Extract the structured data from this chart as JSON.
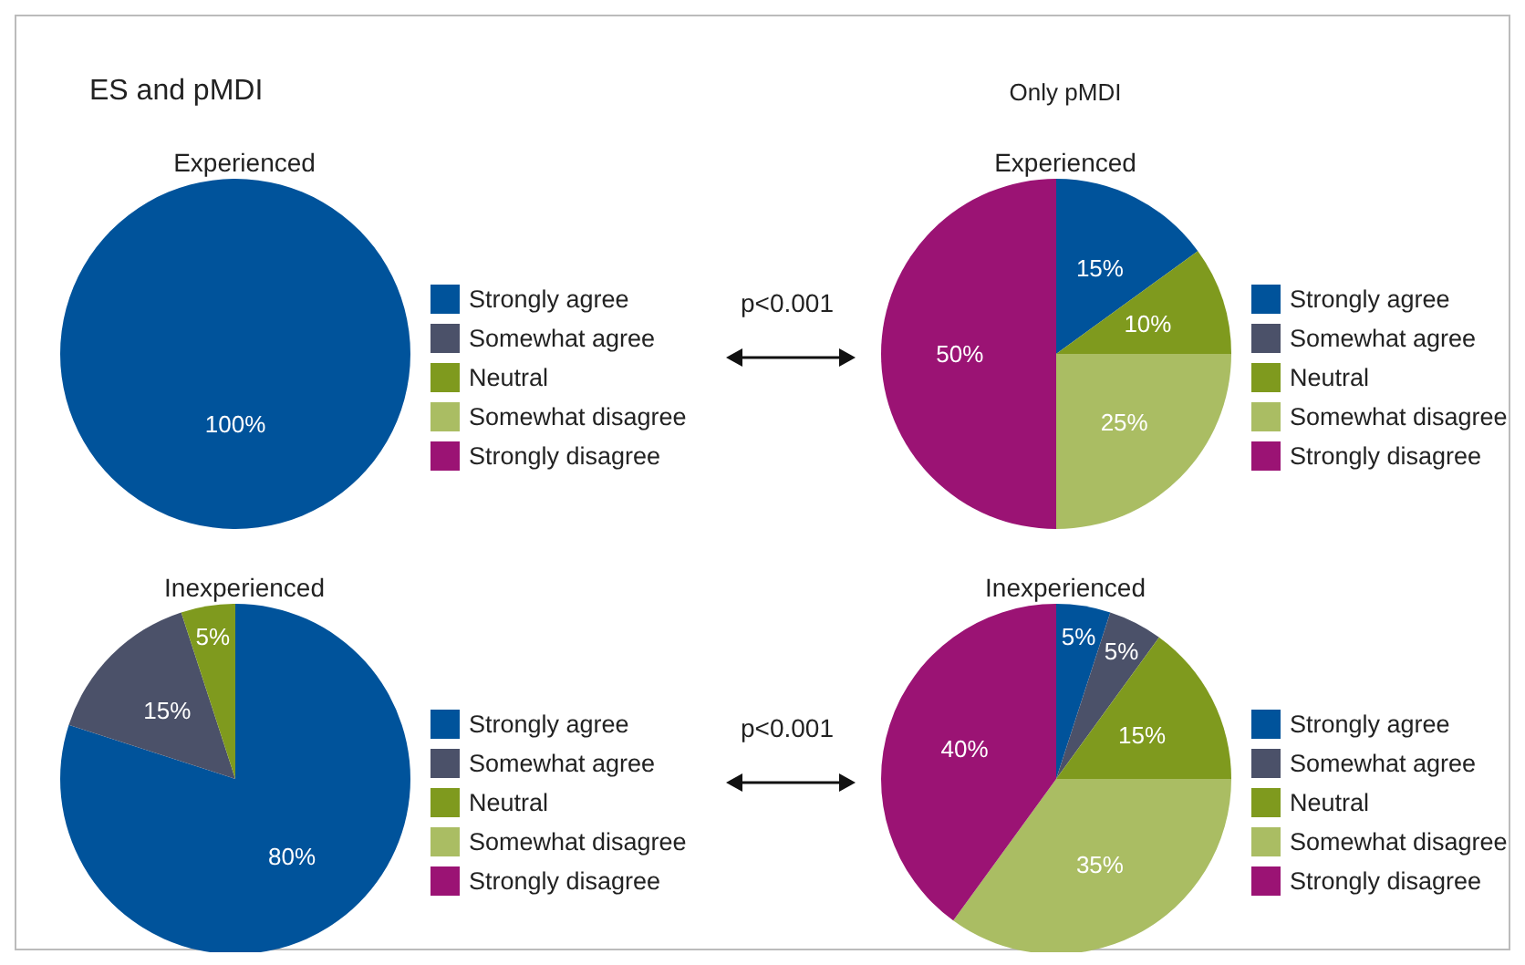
{
  "chart_data": [
    {
      "type": "pie",
      "title": "ES and pMDI",
      "subtitle": "Experienced",
      "categories": [
        "Strongly agree",
        "Somewhat agree",
        "Neutral",
        "Somewhat disagree",
        "Strongly disagree"
      ],
      "values": [
        100,
        0,
        0,
        0,
        0
      ],
      "value_labels": [
        "100%",
        null,
        null,
        null,
        null
      ],
      "colors": [
        "#00539b",
        "#4b5169",
        "#7f9a1e",
        "#aabd63",
        "#9b1374"
      ],
      "legend": "right",
      "annotations": [
        "p<0.001"
      ]
    },
    {
      "type": "pie",
      "title": "Only pMDI",
      "subtitle": "Experienced",
      "categories": [
        "Strongly agree",
        "Somewhat agree",
        "Neutral",
        "Somewhat disagree",
        "Strongly disagree"
      ],
      "values": [
        15,
        0,
        10,
        25,
        50
      ],
      "value_labels": [
        "15%",
        null,
        "10%",
        "25%",
        "50%"
      ],
      "colors": [
        "#00539b",
        "#4b5169",
        "#7f9a1e",
        "#aabd63",
        "#9b1374"
      ],
      "legend": "right"
    },
    {
      "type": "pie",
      "title": "Inexperienced",
      "categories": [
        "Strongly agree",
        "Somewhat agree",
        "Neutral",
        "Somewhat disagree",
        "Strongly disagree"
      ],
      "values": [
        80,
        15,
        5,
        0,
        0
      ],
      "value_labels": [
        "80%",
        "15%",
        "5%",
        null,
        null
      ],
      "colors": [
        "#00539b",
        "#4b5169",
        "#7f9a1e",
        "#aabd63",
        "#9b1374"
      ],
      "legend": "right",
      "annotations": [
        "p<0.001"
      ]
    },
    {
      "type": "pie",
      "title": "Inexperienced",
      "categories": [
        "Strongly agree",
        "Somewhat agree",
        "Neutral",
        "Somewhat disagree",
        "Strongly disagree"
      ],
      "values": [
        5,
        5,
        15,
        35,
        40
      ],
      "value_labels": [
        "5%",
        "5%",
        "15%",
        "35%",
        "40%"
      ],
      "colors": [
        "#00539b",
        "#4b5169",
        "#7f9a1e",
        "#aabd63",
        "#9b1374"
      ],
      "legend": "right"
    }
  ]
}
